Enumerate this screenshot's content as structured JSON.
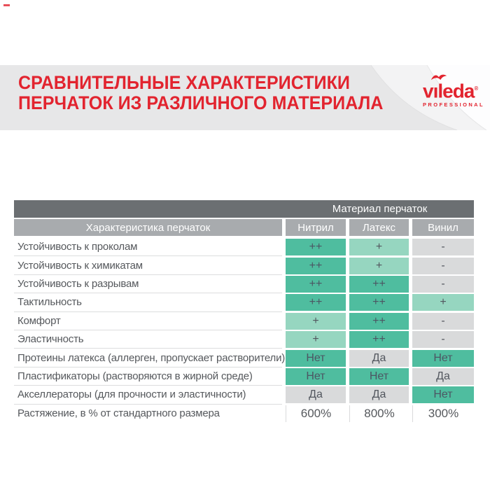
{
  "header": {
    "title_line1": "СРАВНИТЕЛЬНЫЕ ХАРАКТЕРИСТИКИ",
    "title_line2": "ПЕРЧАТОК ИЗ РАЗЛИЧНОГО МАТЕРИАЛА"
  },
  "brand": {
    "wordmark": "vıleda",
    "registered": "®",
    "subtitle": "PROFESSIONAL",
    "bird_icon": "vileda-bird"
  },
  "colors": {
    "accent_red": "#e2242f",
    "teal_strong": "#4fbd9f",
    "teal_light": "#96d6c0",
    "cell_gray": "#d9dadb",
    "header_dark": "#6b6f72",
    "header_light": "#a8abae",
    "band_gray": "#e7e7e8"
  },
  "chart_data": {
    "type": "table",
    "title": "СРАВНИТЕЛЬНЫЕ ХАРАКТЕРИСТИКИ ПЕРЧАТОК ИЗ РАЗЛИЧНОГО МАТЕРИАЛА",
    "group_header": "Материал перчаток",
    "row_header": "Характеристика перчаток",
    "columns": [
      "Нитрил",
      "Латекс",
      "Винил"
    ],
    "rows": [
      {
        "label": "Устойчивость к проколам",
        "values": [
          "++",
          "+",
          "-"
        ],
        "styles": [
          "good",
          "medium",
          "poor"
        ]
      },
      {
        "label": "Устойчивость к химикатам",
        "values": [
          "++",
          "+",
          "-"
        ],
        "styles": [
          "good",
          "medium",
          "poor"
        ]
      },
      {
        "label": "Устойчивость к разрывам",
        "values": [
          "++",
          "++",
          "-"
        ],
        "styles": [
          "good",
          "good",
          "poor"
        ]
      },
      {
        "label": "Тактильность",
        "values": [
          "++",
          "++",
          "+"
        ],
        "styles": [
          "good",
          "good",
          "medium"
        ]
      },
      {
        "label": "Комфорт",
        "values": [
          "+",
          "++",
          "-"
        ],
        "styles": [
          "medium",
          "good",
          "poor"
        ]
      },
      {
        "label": "Эластичность",
        "values": [
          "+",
          "++",
          "-"
        ],
        "styles": [
          "medium",
          "good",
          "poor"
        ]
      },
      {
        "label": "Протеины латекса (аллерген, пропускает растворители)",
        "values": [
          "Нет",
          "Да",
          "Нет"
        ],
        "styles": [
          "good",
          "poor",
          "good"
        ]
      },
      {
        "label": "Пластификаторы (растворяются в жирной среде)",
        "values": [
          "Нет",
          "Нет",
          "Да"
        ],
        "styles": [
          "good",
          "good",
          "poor"
        ]
      },
      {
        "label": "Акселлераторы (для прочности и эластичности)",
        "values": [
          "Да",
          "Да",
          "Нет"
        ],
        "styles": [
          "poor",
          "poor",
          "good"
        ]
      },
      {
        "label": "Растяжение, в % от стандартного размера",
        "values": [
          "600%",
          "800%",
          "300%"
        ],
        "styles": [
          "plain",
          "plain",
          "plain"
        ]
      }
    ]
  }
}
